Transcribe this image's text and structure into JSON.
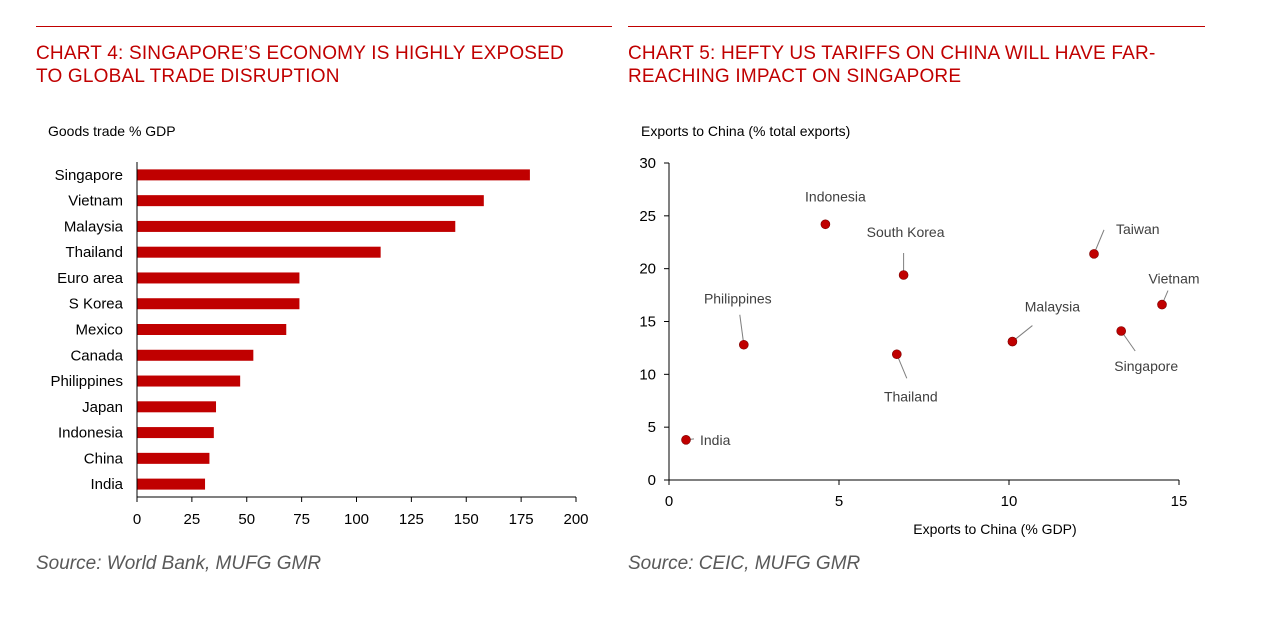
{
  "colors": {
    "accent": "#c00000",
    "bar": "#c00000",
    "dot": "#c00000",
    "axis": "#000000",
    "source": "#595959"
  },
  "panels": [
    {
      "title_line1": "CHART 4: SINGAPORE’S ECONOMY IS HIGHLY EXPOSED",
      "title_line2": "TO GLOBAL TRADE DISRUPTION",
      "source": "Source: World Bank, MUFG GMR"
    },
    {
      "title_line1": "CHART 5: HEFTY US TARIFFS ON CHINA WILL HAVE FAR-",
      "title_line2": "REACHING IMPACT ON SINGAPORE",
      "source": "Source: CEIC, MUFG GMR"
    }
  ],
  "chart_data": [
    {
      "type": "bar",
      "orientation": "horizontal",
      "title": "CHART 4: SINGAPORE’S ECONOMY IS HIGHLY EXPOSED TO GLOBAL TRADE DISRUPTION",
      "ylabel": "Goods trade % GDP",
      "xlabel": "",
      "categories": [
        "Singapore",
        "Vietnam",
        "Malaysia",
        "Thailand",
        "Euro area",
        "S Korea",
        "Mexico",
        "Canada",
        "Philippines",
        "Japan",
        "Indonesia",
        "China",
        "India"
      ],
      "values": [
        179,
        158,
        145,
        111,
        74,
        74,
        68,
        53,
        47,
        36,
        35,
        33,
        31
      ],
      "xlim": [
        0,
        200
      ],
      "xticks": [
        "0",
        "25",
        "50",
        "75",
        "100",
        "125",
        "150",
        "175",
        "200"
      ]
    },
    {
      "type": "scatter",
      "title": "CHART 5: HEFTY US TARIFFS ON CHINA WILL HAVE FAR-REACHING IMPACT ON SINGAPORE",
      "ylabel": "Exports to China (% total exports)",
      "xlabel": "Exports to China (% GDP)",
      "xlim": [
        0,
        15
      ],
      "ylim": [
        0,
        30
      ],
      "xticks": [
        "0",
        "5",
        "10",
        "15"
      ],
      "yticks": [
        "0",
        "5",
        "10",
        "15",
        "20",
        "25",
        "30"
      ],
      "points": [
        {
          "label": "India",
          "x": 0.5,
          "y": 3.8
        },
        {
          "label": "Philippines",
          "x": 2.2,
          "y": 12.8
        },
        {
          "label": "Indonesia",
          "x": 4.6,
          "y": 24.2
        },
        {
          "label": "Thailand",
          "x": 6.7,
          "y": 11.9
        },
        {
          "label": "South Korea",
          "x": 6.9,
          "y": 19.4
        },
        {
          "label": "Malaysia",
          "x": 10.1,
          "y": 13.1
        },
        {
          "label": "Taiwan",
          "x": 12.5,
          "y": 21.4
        },
        {
          "label": "Singapore",
          "x": 13.3,
          "y": 14.1
        },
        {
          "label": "Vietnam",
          "x": 14.5,
          "y": 16.6
        }
      ]
    }
  ]
}
